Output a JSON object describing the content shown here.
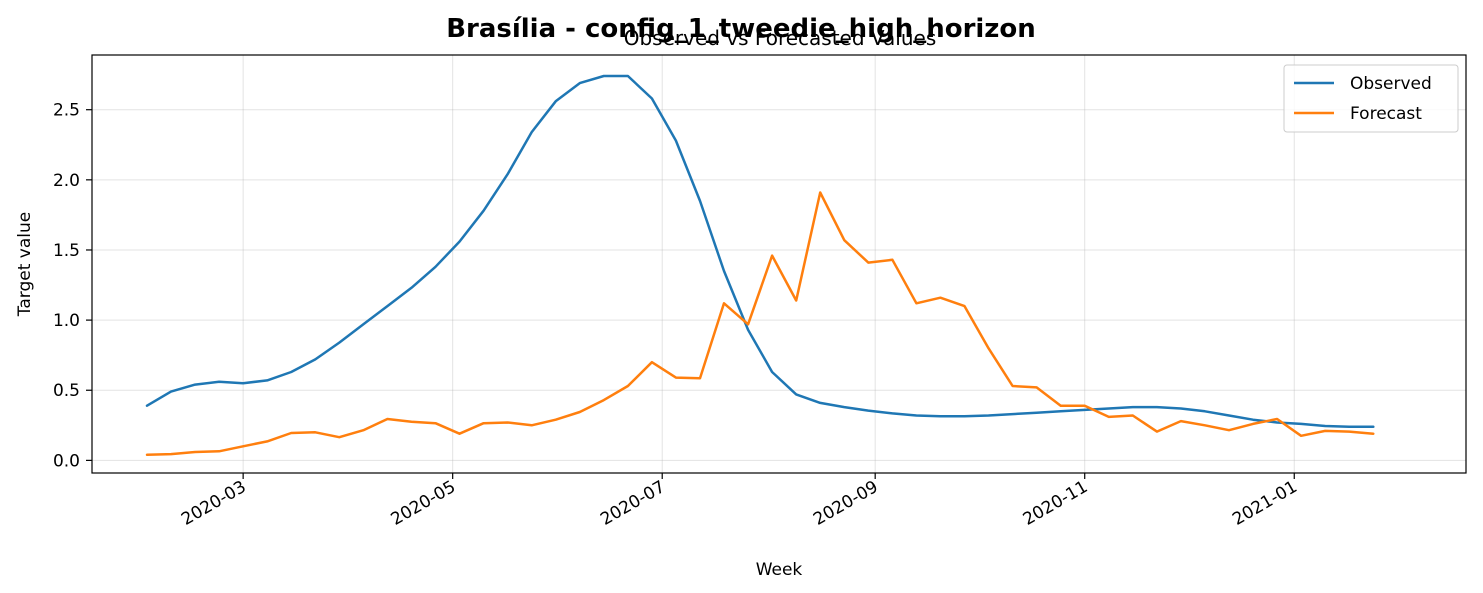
{
  "chart_data": {
    "type": "line",
    "suptitle": "Brasília - config_1_tweedie_high_horizon",
    "title": "Observed vs Forecasted Values",
    "xlabel": "Week",
    "ylabel": "Target value",
    "ylim": [
      -0.09,
      2.89
    ],
    "xlim": [
      "2020-01-17",
      "2021-02-20"
    ],
    "grid": true,
    "legend_position": "top-right",
    "y_ticks": [
      {
        "value": 0.0,
        "label": "0.0"
      },
      {
        "value": 0.5,
        "label": "0.5"
      },
      {
        "value": 1.0,
        "label": "1.0"
      },
      {
        "value": 1.5,
        "label": "1.5"
      },
      {
        "value": 2.0,
        "label": "2.0"
      },
      {
        "value": 2.5,
        "label": "2.5"
      }
    ],
    "x_ticks": [
      {
        "date": "2020-03-01",
        "label": "2020-03"
      },
      {
        "date": "2020-05-01",
        "label": "2020-05"
      },
      {
        "date": "2020-07-01",
        "label": "2020-07"
      },
      {
        "date": "2020-09-01",
        "label": "2020-09"
      },
      {
        "date": "2020-11-01",
        "label": "2020-11"
      },
      {
        "date": "2021-01-01",
        "label": "2021-01"
      }
    ],
    "x": [
      "2020-02-02",
      "2020-02-09",
      "2020-02-16",
      "2020-02-23",
      "2020-03-01",
      "2020-03-08",
      "2020-03-15",
      "2020-03-22",
      "2020-03-29",
      "2020-04-05",
      "2020-04-12",
      "2020-04-19",
      "2020-04-26",
      "2020-05-03",
      "2020-05-10",
      "2020-05-17",
      "2020-05-24",
      "2020-05-31",
      "2020-06-07",
      "2020-06-14",
      "2020-06-21",
      "2020-06-28",
      "2020-07-05",
      "2020-07-12",
      "2020-07-19",
      "2020-07-26",
      "2020-08-02",
      "2020-08-09",
      "2020-08-16",
      "2020-08-23",
      "2020-08-30",
      "2020-09-06",
      "2020-09-13",
      "2020-09-20",
      "2020-09-27",
      "2020-10-04",
      "2020-10-11",
      "2020-10-18",
      "2020-10-25",
      "2020-11-01",
      "2020-11-08",
      "2020-11-15",
      "2020-11-22",
      "2020-11-29",
      "2020-12-06",
      "2020-12-13",
      "2020-12-20",
      "2020-12-27",
      "2021-01-03",
      "2021-01-10",
      "2021-01-17",
      "2021-01-24"
    ],
    "series": [
      {
        "name": "Observed",
        "color": "#1f77b4",
        "values": [
          0.39,
          0.49,
          0.54,
          0.56,
          0.55,
          0.57,
          0.63,
          0.72,
          0.84,
          0.97,
          1.1,
          1.23,
          1.38,
          1.56,
          1.78,
          2.04,
          2.34,
          2.56,
          2.69,
          2.74,
          2.74,
          2.58,
          2.28,
          1.85,
          1.35,
          0.93,
          0.63,
          0.47,
          0.41,
          0.38,
          0.355,
          0.335,
          0.32,
          0.315,
          0.315,
          0.32,
          0.33,
          0.34,
          0.35,
          0.36,
          0.37,
          0.38,
          0.38,
          0.37,
          0.35,
          0.32,
          0.29,
          0.27,
          0.26,
          0.245,
          0.24,
          0.24
        ]
      },
      {
        "name": "Forecast",
        "color": "#ff7f0e",
        "values": [
          0.04,
          0.045,
          0.06,
          0.065,
          0.1,
          0.135,
          0.195,
          0.2,
          0.165,
          0.215,
          0.295,
          0.275,
          0.265,
          0.19,
          0.265,
          0.27,
          0.25,
          0.29,
          0.345,
          0.43,
          0.53,
          0.7,
          0.59,
          0.585,
          1.12,
          0.97,
          1.46,
          1.14,
          1.91,
          1.57,
          1.41,
          1.43,
          1.12,
          1.16,
          1.1,
          0.8,
          0.53,
          0.52,
          0.39,
          0.39,
          0.31,
          0.32,
          0.205,
          0.28,
          0.25,
          0.215,
          0.26,
          0.295,
          0.175,
          0.21,
          0.205,
          0.19
        ]
      }
    ]
  }
}
